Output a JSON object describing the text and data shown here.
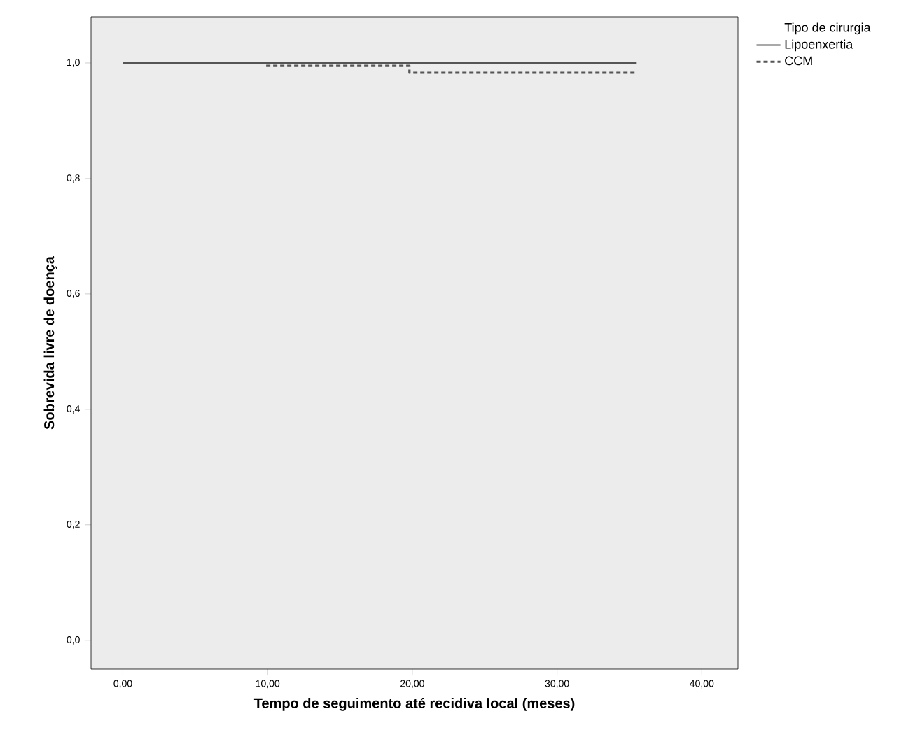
{
  "chart_data": {
    "type": "step",
    "xlabel": "Tempo de seguimento até recidiva local (meses)",
    "ylabel": "Sobrevida livre de doença",
    "legend_title": "Tipo de cirurgia",
    "legend": "top right",
    "xlim": [
      -2.2,
      42.5
    ],
    "ylim": [
      -0.05,
      1.08
    ],
    "xticks": [
      {
        "value": 0,
        "label": "0,00"
      },
      {
        "value": 10,
        "label": "10,00"
      },
      {
        "value": 20,
        "label": "20,00"
      },
      {
        "value": 30,
        "label": "30,00"
      },
      {
        "value": 40,
        "label": "40,00"
      }
    ],
    "yticks": [
      {
        "value": 0,
        "label": "0,0"
      },
      {
        "value": 0.2,
        "label": "0,2"
      },
      {
        "value": 0.4,
        "label": "0,4"
      },
      {
        "value": 0.6,
        "label": "0,6"
      },
      {
        "value": 0.8,
        "label": "0,8"
      },
      {
        "value": 1.0,
        "label": "1,0"
      }
    ],
    "series": [
      {
        "name": "Lipoenxertia",
        "color": "#555555",
        "line_style": "solid",
        "x": [
          0,
          35.5
        ],
        "values": [
          1,
          1
        ]
      },
      {
        "name": "CCM",
        "color": "#555555",
        "line_style": "dotted",
        "x": [
          9.9,
          19.8,
          35.5
        ],
        "values": [
          0.995,
          0.983,
          0.983
        ]
      }
    ]
  }
}
